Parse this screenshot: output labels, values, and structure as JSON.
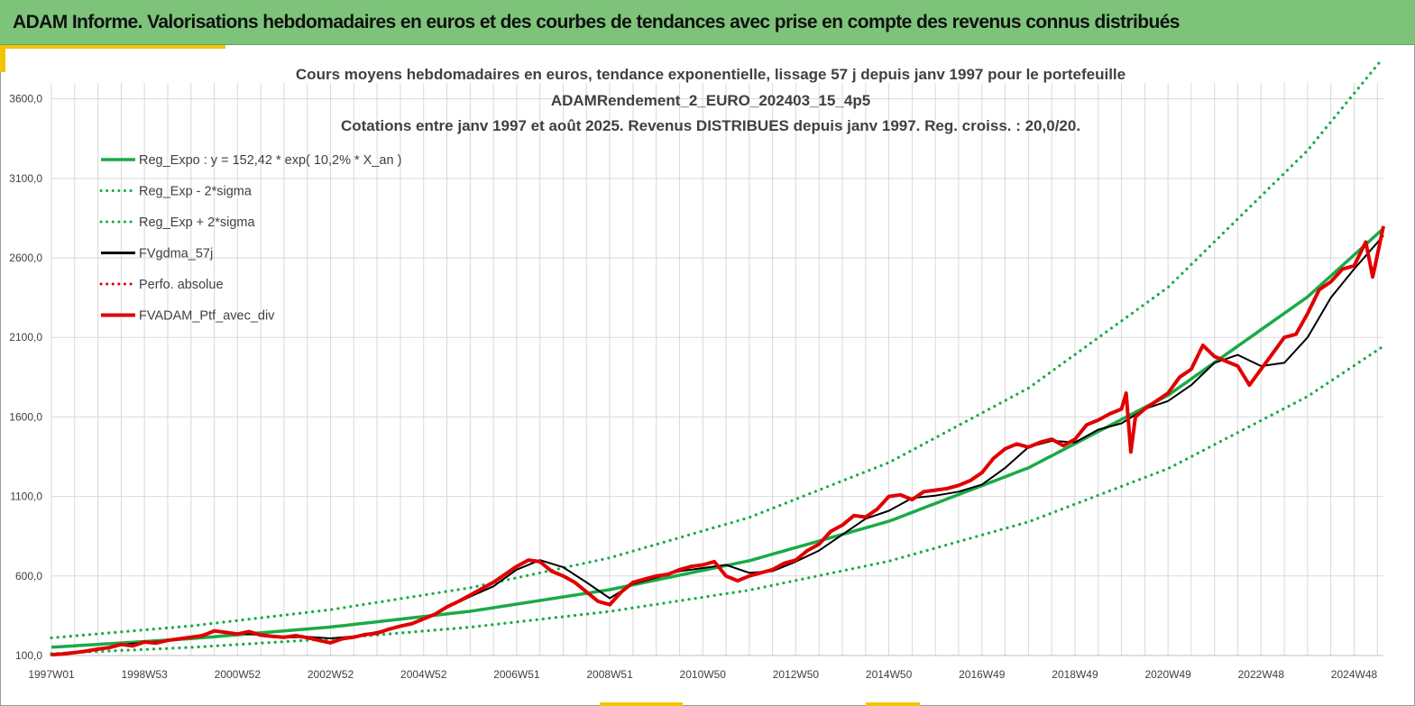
{
  "banner": {
    "title": "ADAM Informe. Valorisations hebdomadaires en euros et des courbes de tendances avec prise en compte des revenus connus distribués"
  },
  "colors": {
    "banner_bg": "#7dc47a",
    "accent": "#f2c500",
    "reg_expo": "#1aaa48",
    "gdma": "#000000",
    "ptf": "#e00000",
    "grid": "#d9d9d9"
  },
  "chart_data": {
    "type": "line",
    "title_lines": [
      "Cours moyens hebdomadaires  en euros, tendance exponentielle, lissage 57 j depuis janv 1997 pour le portefeuille",
      "ADAMRendement_2_EURO_202403_15_4p5",
      "Cotations  entre janv 1997 et août 2025. Revenus DISTRIBUES depuis janv 1997. Reg. croiss. : 20,0/20."
    ],
    "ylim": [
      100,
      3700
    ],
    "y_ticks": [
      "100,0",
      "600,0",
      "1100,0",
      "1600,0",
      "2100,0",
      "2600,0",
      "3100,0",
      "3600,0"
    ],
    "y_tick_values": [
      100,
      600,
      1100,
      1600,
      2100,
      2600,
      3100,
      3600
    ],
    "x_range": [
      1997.0,
      2025.63
    ],
    "x_ticks": [
      "1997W01",
      "1998W53",
      "2000W52",
      "2002W52",
      "2004W52",
      "2006W51",
      "2008W51",
      "2010W50",
      "2012W50",
      "2014W50",
      "2016W49",
      "2018W49",
      "2020W49",
      "2022W48",
      "2024W48"
    ],
    "x_tick_values": [
      1997.0,
      1999.0,
      2001.0,
      2003.0,
      2005.0,
      2007.0,
      2009.0,
      2011.0,
      2013.0,
      2015.0,
      2017.0,
      2019.0,
      2021.0,
      2023.0,
      2025.0
    ],
    "grid": true,
    "legend_position": "top-left",
    "series": [
      {
        "name": "Reg_Expo : y = 152,42 * exp( 10,2% *  X_an )",
        "style": "solid",
        "color": "#1aaa48",
        "x": [
          1997.0,
          2000.0,
          2003.0,
          2006.0,
          2009.0,
          2012.0,
          2015.0,
          2018.0,
          2021.0,
          2024.0,
          2025.63
        ],
        "y": [
          152,
          206,
          279,
          378,
          514,
          696,
          944,
          1280,
          1736,
          2355,
          2785
        ]
      },
      {
        "name": "Reg_Exp - 2*sigma",
        "style": "dotted",
        "color": "#1aaa48",
        "x": [
          1997.0,
          2000.0,
          2003.0,
          2006.0,
          2009.0,
          2012.0,
          2015.0,
          2018.0,
          2021.0,
          2024.0,
          2025.63
        ],
        "y": [
          112,
          151,
          205,
          278,
          377,
          511,
          693,
          940,
          1275,
          1729,
          2045
        ]
      },
      {
        "name": "Reg_Exp + 2*sigma",
        "style": "dotted",
        "color": "#1aaa48",
        "x": [
          1997.0,
          2000.0,
          2003.0,
          2006.0,
          2009.0,
          2012.0,
          2015.0,
          2018.0,
          2021.0,
          2024.0,
          2025.63
        ],
        "y": [
          211,
          286,
          388,
          526,
          714,
          968,
          1313,
          1781,
          2415,
          3276,
          3860
        ]
      },
      {
        "name": "FVgdma_57j",
        "style": "solid",
        "color": "#000000",
        "x": [
          1997.0,
          1997.5,
          1998.0,
          1998.5,
          1999.0,
          1999.5,
          2000.0,
          2000.5,
          2001.0,
          2001.5,
          2002.0,
          2002.5,
          2003.0,
          2003.5,
          2004.0,
          2004.5,
          2005.0,
          2005.5,
          2006.0,
          2006.5,
          2007.0,
          2007.5,
          2008.0,
          2008.5,
          2009.0,
          2009.5,
          2010.0,
          2010.5,
          2011.0,
          2011.5,
          2012.0,
          2012.5,
          2013.0,
          2013.5,
          2014.0,
          2014.5,
          2015.0,
          2015.5,
          2016.0,
          2016.5,
          2017.0,
          2017.5,
          2018.0,
          2018.5,
          2019.0,
          2019.5,
          2020.0,
          2020.5,
          2021.0,
          2021.5,
          2022.0,
          2022.5,
          2023.0,
          2023.5,
          2024.0,
          2024.5,
          2025.0,
          2025.63
        ],
        "y": [
          108,
          117,
          135,
          168,
          182,
          192,
          212,
          252,
          240,
          228,
          212,
          218,
          208,
          220,
          248,
          282,
          330,
          400,
          470,
          535,
          640,
          700,
          655,
          560,
          460,
          550,
          590,
          630,
          650,
          670,
          620,
          630,
          690,
          760,
          860,
          960,
          1010,
          1090,
          1105,
          1130,
          1175,
          1280,
          1410,
          1450,
          1440,
          1520,
          1560,
          1650,
          1700,
          1800,
          1940,
          1990,
          1920,
          1940,
          2100,
          2350,
          2530,
          2740
        ]
      },
      {
        "name": "Perfo. absolue",
        "style": "dotted",
        "color": "#e00000",
        "x": [
          1997.0,
          2025.63
        ],
        "y": [
          108,
          2760
        ]
      },
      {
        "name": "FVADAM_Ptf_avec_div",
        "style": "solid",
        "color": "#e00000",
        "x": [
          1997.0,
          1997.25,
          1997.5,
          1997.75,
          1998.0,
          1998.25,
          1998.5,
          1998.75,
          1999.0,
          1999.25,
          1999.5,
          1999.75,
          2000.0,
          2000.25,
          2000.5,
          2000.75,
          2001.0,
          2001.25,
          2001.5,
          2001.75,
          2002.0,
          2002.25,
          2002.5,
          2002.75,
          2003.0,
          2003.25,
          2003.5,
          2003.75,
          2004.0,
          2004.25,
          2004.5,
          2004.75,
          2005.0,
          2005.25,
          2005.5,
          2005.75,
          2006.0,
          2006.25,
          2006.5,
          2006.75,
          2007.0,
          2007.25,
          2007.5,
          2007.75,
          2008.0,
          2008.25,
          2008.5,
          2008.75,
          2009.0,
          2009.25,
          2009.5,
          2009.75,
          2010.0,
          2010.25,
          2010.5,
          2010.75,
          2011.0,
          2011.25,
          2011.5,
          2011.75,
          2012.0,
          2012.25,
          2012.5,
          2012.75,
          2013.0,
          2013.25,
          2013.5,
          2013.75,
          2014.0,
          2014.25,
          2014.5,
          2014.75,
          2015.0,
          2015.25,
          2015.5,
          2015.75,
          2016.0,
          2016.25,
          2016.5,
          2016.75,
          2017.0,
          2017.25,
          2017.5,
          2017.75,
          2018.0,
          2018.25,
          2018.5,
          2018.75,
          2019.0,
          2019.25,
          2019.5,
          2019.75,
          2020.0,
          2020.1,
          2020.2,
          2020.3,
          2020.5,
          2020.75,
          2021.0,
          2021.25,
          2021.5,
          2021.75,
          2022.0,
          2022.25,
          2022.5,
          2022.75,
          2023.0,
          2023.25,
          2023.5,
          2023.75,
          2024.0,
          2024.25,
          2024.5,
          2024.75,
          2025.0,
          2025.25,
          2025.4,
          2025.63
        ],
        "y": [
          105,
          110,
          118,
          128,
          140,
          150,
          170,
          160,
          185,
          178,
          195,
          205,
          215,
          225,
          255,
          245,
          235,
          250,
          228,
          220,
          215,
          225,
          212,
          195,
          180,
          205,
          215,
          232,
          240,
          265,
          285,
          300,
          330,
          360,
          405,
          440,
          480,
          520,
          560,
          610,
          660,
          700,
          690,
          630,
          600,
          560,
          500,
          440,
          420,
          500,
          560,
          580,
          600,
          610,
          640,
          660,
          670,
          690,
          600,
          570,
          600,
          620,
          640,
          680,
          700,
          760,
          800,
          880,
          920,
          980,
          970,
          1020,
          1100,
          1110,
          1080,
          1130,
          1140,
          1150,
          1170,
          1200,
          1250,
          1340,
          1400,
          1430,
          1410,
          1440,
          1460,
          1420,
          1460,
          1550,
          1580,
          1620,
          1650,
          1750,
          1380,
          1600,
          1650,
          1700,
          1750,
          1850,
          1900,
          2050,
          1980,
          1950,
          1920,
          1800,
          1900,
          2000,
          2100,
          2120,
          2250,
          2400,
          2450,
          2530,
          2550,
          2700,
          2480,
          2800
        ]
      }
    ]
  }
}
